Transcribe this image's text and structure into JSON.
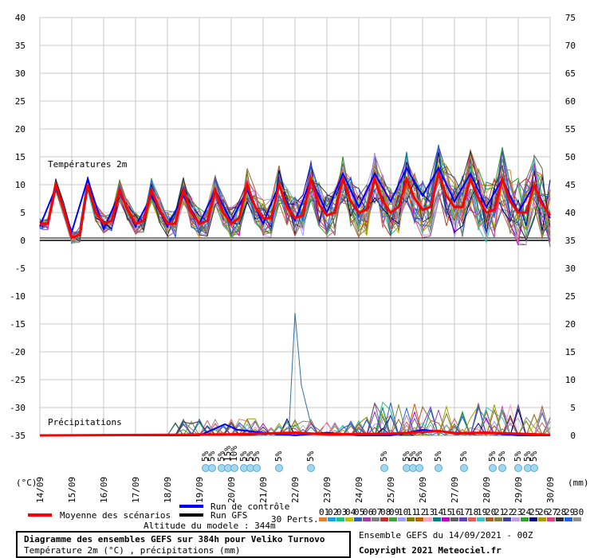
{
  "chart_data": {
    "type": "line",
    "left_axis_label": "(°C)",
    "right_axis_label": "(mm)",
    "left_ticks": [
      40,
      35,
      30,
      25,
      20,
      15,
      10,
      5,
      0,
      -5,
      -10,
      -15,
      -20,
      -25,
      -30,
      -35
    ],
    "right_ticks": [
      75,
      70,
      65,
      60,
      55,
      50,
      45,
      40,
      35,
      30,
      25,
      20,
      15,
      10,
      5,
      0
    ],
    "x_labels": [
      "14/09",
      "15/09",
      "16/09",
      "17/09",
      "18/09",
      "19/09",
      "20/09",
      "21/09",
      "22/09",
      "23/09",
      "24/09",
      "25/09",
      "26/09",
      "27/09",
      "28/09",
      "29/09",
      "30/09"
    ],
    "temp_section_label": "Températures 2m",
    "precip_section_label": "Précipitations",
    "grid": true,
    "series_count": 32,
    "member_colors": [
      "#e08030",
      "#20a0e0",
      "#20c080",
      "#c0c000",
      "#3060c0",
      "#a040a0",
      "#808080",
      "#c03030",
      "#40a040",
      "#a0a0ff",
      "#808000",
      "#c06000",
      "#ffa0c0",
      "#008080",
      "#c000c0",
      "#606060",
      "#6040c0",
      "#e06060",
      "#40c0c0",
      "#a06030",
      "#808040",
      "#4040a0",
      "#c0a0e0",
      "#30a030",
      "#000080",
      "#a0a000",
      "#e04080",
      "#303030",
      "#2060e0",
      "#909090"
    ],
    "temp_mean": [
      [
        0,
        3
      ],
      [
        0.08,
        3
      ],
      [
        0.25,
        3
      ],
      [
        0.5,
        10
      ],
      [
        0.75,
        5.5
      ],
      [
        1.0,
        0.5
      ],
      [
        1.25,
        1
      ],
      [
        1.5,
        10
      ],
      [
        1.75,
        5
      ],
      [
        2.0,
        3
      ],
      [
        2.25,
        3.5
      ],
      [
        2.5,
        9
      ],
      [
        2.75,
        5.5
      ],
      [
        3.0,
        3
      ],
      [
        3.25,
        3.5
      ],
      [
        3.5,
        9
      ],
      [
        3.75,
        5.5
      ],
      [
        4.0,
        3
      ],
      [
        4.25,
        3
      ],
      [
        4.5,
        9
      ],
      [
        4.75,
        5
      ],
      [
        5.0,
        3
      ],
      [
        5.25,
        3.5
      ],
      [
        5.5,
        9
      ],
      [
        5.75,
        5
      ],
      [
        6.0,
        3
      ],
      [
        6.25,
        4
      ],
      [
        6.5,
        10
      ],
      [
        6.75,
        6
      ],
      [
        7.0,
        4
      ],
      [
        7.25,
        4
      ],
      [
        7.5,
        10
      ],
      [
        7.75,
        6
      ],
      [
        8.0,
        4
      ],
      [
        8.25,
        4.5
      ],
      [
        8.5,
        11
      ],
      [
        8.75,
        6.5
      ],
      [
        9.0,
        4.5
      ],
      [
        9.25,
        5
      ],
      [
        9.5,
        11
      ],
      [
        9.75,
        7
      ],
      [
        10.0,
        5
      ],
      [
        10.25,
        5.5
      ],
      [
        10.5,
        11
      ],
      [
        10.75,
        7
      ],
      [
        11.0,
        5
      ],
      [
        11.25,
        6
      ],
      [
        11.5,
        11
      ],
      [
        11.75,
        7.5
      ],
      [
        12.0,
        5.5
      ],
      [
        12.25,
        6
      ],
      [
        12.5,
        12
      ],
      [
        12.75,
        8
      ],
      [
        13.0,
        6
      ],
      [
        13.25,
        6
      ],
      [
        13.5,
        11
      ],
      [
        13.75,
        7.5
      ],
      [
        14.0,
        5
      ],
      [
        14.25,
        5.5
      ],
      [
        14.5,
        11
      ],
      [
        14.75,
        7
      ],
      [
        15.0,
        5
      ],
      [
        15.25,
        5
      ],
      [
        15.5,
        10
      ],
      [
        15.75,
        6.5
      ],
      [
        16.0,
        4.5
      ]
    ],
    "temp_control": [
      [
        0,
        2.5
      ],
      [
        0.5,
        9.5
      ],
      [
        1.0,
        1.5
      ],
      [
        1.5,
        11
      ],
      [
        2.0,
        2
      ],
      [
        2.5,
        8.5
      ],
      [
        3.0,
        2.5
      ],
      [
        3.5,
        8
      ],
      [
        4.0,
        2.5
      ],
      [
        4.5,
        8
      ],
      [
        5.0,
        3
      ],
      [
        5.5,
        9
      ],
      [
        6.0,
        3.5
      ],
      [
        6.5,
        9
      ],
      [
        7.0,
        3
      ],
      [
        7.5,
        10
      ],
      [
        8.0,
        3.5
      ],
      [
        8.5,
        11
      ],
      [
        9.0,
        5
      ],
      [
        9.5,
        12
      ],
      [
        10.0,
        6
      ],
      [
        10.5,
        12
      ],
      [
        11.0,
        7
      ],
      [
        11.5,
        13
      ],
      [
        12.0,
        8
      ],
      [
        12.5,
        13
      ],
      [
        13.0,
        7
      ],
      [
        13.5,
        12
      ],
      [
        14.0,
        6
      ],
      [
        14.5,
        11
      ],
      [
        15.0,
        5
      ],
      [
        15.5,
        10
      ],
      [
        16.0,
        4
      ]
    ],
    "precip_control_mm": [
      [
        0,
        0
      ],
      [
        5,
        0
      ],
      [
        5.8,
        2
      ],
      [
        6.2,
        1
      ],
      [
        7,
        0.5
      ],
      [
        8,
        0
      ],
      [
        9,
        0.5
      ],
      [
        10,
        0
      ],
      [
        11,
        0
      ],
      [
        12,
        1
      ],
      [
        13,
        0.5
      ],
      [
        14,
        0.5
      ],
      [
        15,
        0
      ],
      [
        16,
        0
      ]
    ],
    "precip_mean_mm": [
      [
        0,
        0
      ],
      [
        4,
        0.1
      ],
      [
        6,
        0.2
      ],
      [
        8,
        0.5
      ],
      [
        9,
        0.2
      ],
      [
        11,
        0.3
      ],
      [
        12,
        0.6
      ],
      [
        12.5,
        0.8
      ],
      [
        13,
        0.4
      ],
      [
        14,
        0.5
      ],
      [
        15,
        0.3
      ],
      [
        16,
        0.1
      ]
    ],
    "precip_spike_mm": [
      [
        7.8,
        0
      ],
      [
        8.0,
        22
      ],
      [
        8.2,
        9
      ],
      [
        8.5,
        2
      ],
      [
        9,
        0
      ]
    ],
    "snow_markers": {
      "days": [
        5.2,
        5.4,
        5.7,
        5.9,
        6.1,
        6.4,
        6.6,
        6.8,
        7.5,
        8.5,
        10.8,
        11.5,
        11.7,
        11.9,
        12.5,
        13.3,
        14.2,
        14.5,
        15.0,
        15.3,
        15.5
      ],
      "labels": [
        "5%",
        "5%",
        "5%",
        "15%",
        "10%",
        "5%",
        "5%",
        "5%",
        "5%",
        "5%",
        "5%",
        "5%",
        "5%",
        "5%",
        "5%",
        "5%",
        "5%",
        "5%",
        "5%",
        "5%",
        "5%"
      ]
    }
  },
  "legend": {
    "mean_label": "Moyenne des scénarios",
    "control_label": "Run de contrôle",
    "gfs_label": "Run GFS",
    "perts_label": "30 Perts.",
    "altitude": "Altitude du modele : 344m",
    "member_numbers": [
      "01",
      "02",
      "03",
      "04",
      "05",
      "06",
      "07",
      "08",
      "09",
      "10",
      "11",
      "12",
      "13",
      "14",
      "15",
      "16",
      "17",
      "18",
      "19",
      "20",
      "21",
      "22",
      "23",
      "24",
      "25",
      "26",
      "27",
      "28",
      "29",
      "30"
    ]
  },
  "footer": {
    "title": "Diagramme des ensembles GEFS sur 384h pour Veliko Turnovo",
    "subtitle": "Température 2m (°C) , précipitations (mm)",
    "run": "Ensemble GEFS du 14/09/2021 - 00Z",
    "copyright": "Copyright 2021 Meteociel.fr"
  }
}
